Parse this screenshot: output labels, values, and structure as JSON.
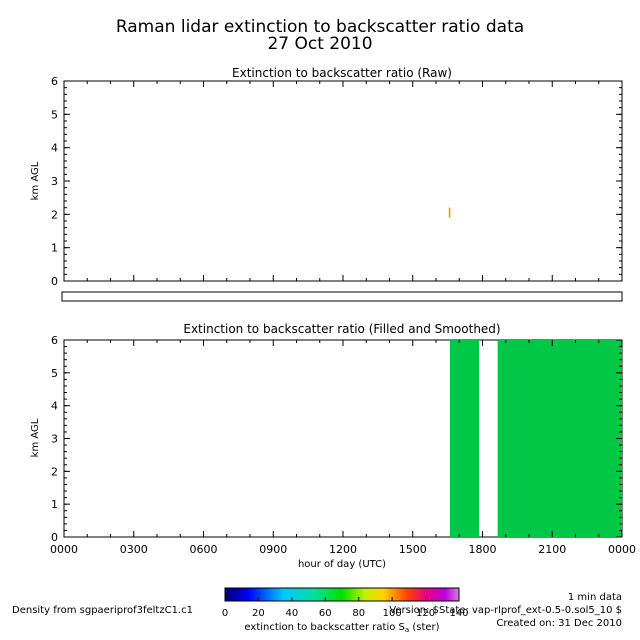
{
  "header": {
    "title": "Raman lidar extinction to backscatter ratio data",
    "date": "27 Oct 2010"
  },
  "colors": {
    "raw_trace": "#e8a000",
    "filled": "#00c846",
    "axis": "#000000"
  },
  "chart_data": [
    {
      "type": "heatmap",
      "title": "Extinction to backscatter ratio (Raw)",
      "ylabel": "km AGL",
      "xlabel": "",
      "xlim": [
        0,
        24
      ],
      "ylim": [
        0,
        6
      ],
      "yticks": [
        "0",
        "1",
        "2",
        "3",
        "4",
        "5",
        "6"
      ],
      "cells": [
        {
          "x0": 16.55,
          "x1": 16.62,
          "y0": 1.9,
          "y1": 2.2,
          "color": "#e8a000"
        }
      ]
    },
    {
      "type": "heatmap",
      "title": "Extinction to backscatter ratio (Filled and Smoothed)",
      "ylabel": "km AGL",
      "xlabel": "hour of day (UTC)",
      "xlim": [
        0,
        24
      ],
      "ylim": [
        0,
        6
      ],
      "yticks": [
        "0",
        "1",
        "2",
        "3",
        "4",
        "5",
        "6"
      ],
      "xticks": [
        "0000",
        "0300",
        "0600",
        "0900",
        "1200",
        "1500",
        "1800",
        "2100",
        "0000"
      ],
      "cells": [
        {
          "x0": 16.6,
          "x1": 17.85,
          "y0": 0,
          "y1": 6,
          "color": "#00c846"
        },
        {
          "x0": 18.65,
          "x1": 24.0,
          "y0": 0,
          "y1": 6,
          "color": "#00c846"
        }
      ]
    }
  ],
  "colorbar": {
    "ticks": [
      "0",
      "20",
      "40",
      "60",
      "80",
      "100",
      "120",
      "140"
    ],
    "range": [
      0,
      140
    ],
    "label_main": "extinction to backscatter ratio S",
    "label_sub": "a",
    "label_unit": " (ster)"
  },
  "footer": {
    "source": "Density from sgpaeriprof3feltzC1.c1",
    "resolution": "1 min data",
    "version": "Version: $State: vap-rlprof_ext-0.5-0.sol5_10 $",
    "created": "Created on: 31 Dec 2010"
  }
}
